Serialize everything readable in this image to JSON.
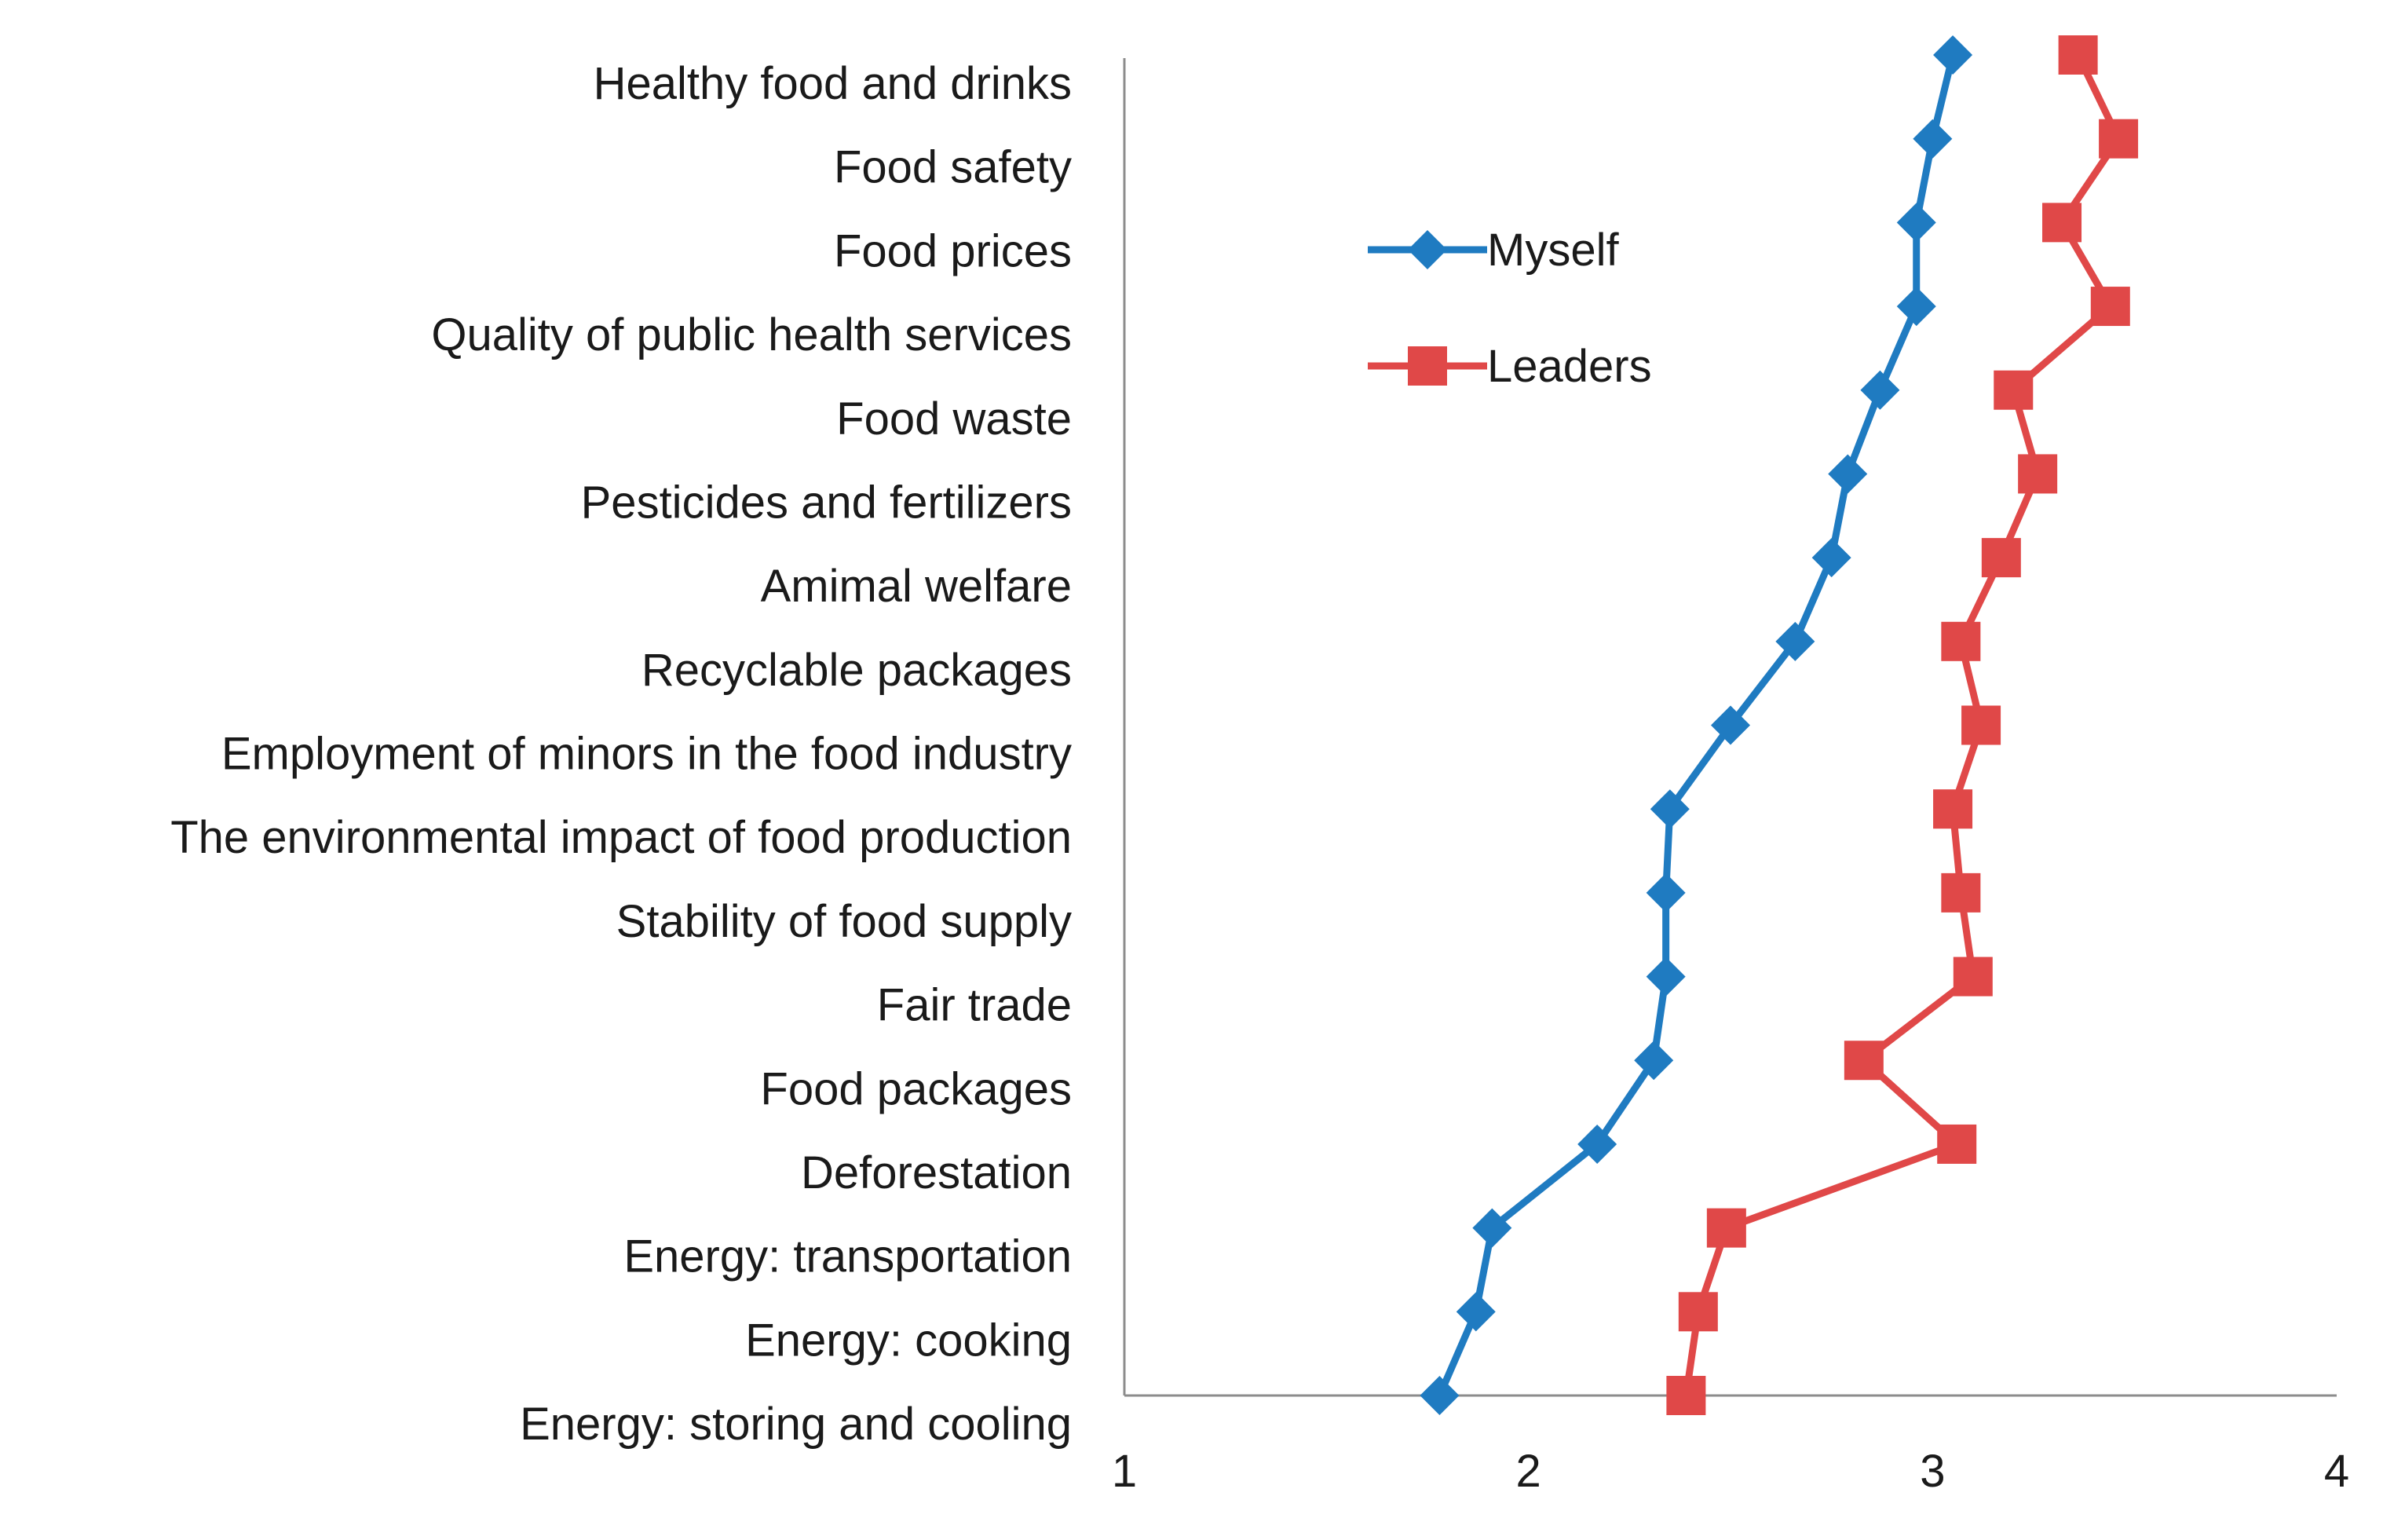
{
  "chart_data": {
    "type": "line",
    "title": "",
    "xlabel": "",
    "ylabel": "",
    "xlim": [
      1,
      4
    ],
    "x_ticks": [
      1,
      2,
      3,
      4
    ],
    "categories": [
      "Healthy food and drinks",
      "Food safety",
      "Food prices",
      "Quality of public health services",
      "Food waste",
      "Pesticides and fertilizers",
      "Amimal welfare",
      "Recyclable packages",
      "Employment of minors in the food industry",
      "The environmental impact of food production",
      "Stability of food supply",
      "Fair trade",
      "Food packages",
      "Deforestation",
      "Energy:  transportation",
      "Energy: cooking",
      "Energy: storing and cooling"
    ],
    "series": [
      {
        "name": "Myself",
        "color": "#1f7bc1",
        "marker": "diamond",
        "values": [
          3.05,
          3.0,
          2.96,
          2.96,
          2.87,
          2.79,
          2.75,
          2.66,
          2.5,
          2.35,
          2.34,
          2.34,
          2.31,
          2.17,
          1.91,
          1.87,
          1.78
        ]
      },
      {
        "name": "Leaders",
        "color": "#e04848",
        "marker": "square",
        "values": [
          3.36,
          3.46,
          3.32,
          3.44,
          3.2,
          3.26,
          3.17,
          3.07,
          3.12,
          3.05,
          3.07,
          3.1,
          2.83,
          3.06,
          2.49,
          2.42,
          2.39
        ]
      }
    ],
    "legend": {
      "position": "top-center",
      "entries": [
        "Myself",
        "Leaders"
      ]
    },
    "grid": false
  }
}
